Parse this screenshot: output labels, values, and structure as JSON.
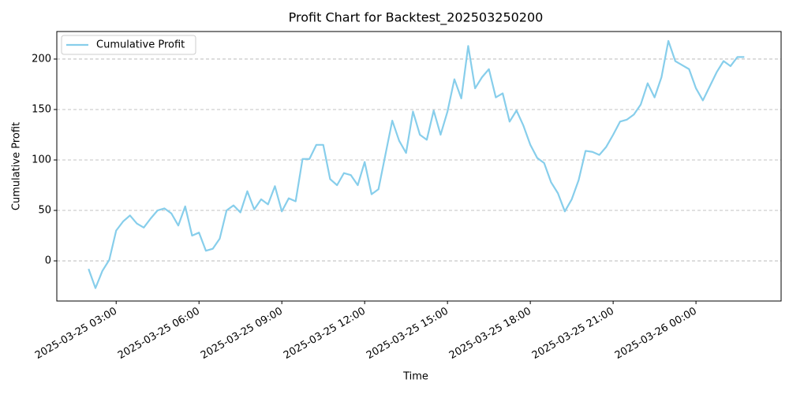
{
  "chart_data": {
    "type": "line",
    "title": "Profit Chart for Backtest_202503250200",
    "x_label": "Time",
    "y_label": "Cumulative Profit",
    "x": [
      "2025-03-25 02:00",
      "2025-03-25 02:15",
      "2025-03-25 02:30",
      "2025-03-25 02:45",
      "2025-03-25 03:00",
      "2025-03-25 03:15",
      "2025-03-25 03:30",
      "2025-03-25 03:45",
      "2025-03-25 04:00",
      "2025-03-25 04:15",
      "2025-03-25 04:30",
      "2025-03-25 04:45",
      "2025-03-25 05:00",
      "2025-03-25 05:15",
      "2025-03-25 05:30",
      "2025-03-25 05:45",
      "2025-03-25 06:00",
      "2025-03-25 06:15",
      "2025-03-25 06:30",
      "2025-03-25 06:45",
      "2025-03-25 07:00",
      "2025-03-25 07:15",
      "2025-03-25 07:30",
      "2025-03-25 07:45",
      "2025-03-25 08:00",
      "2025-03-25 08:15",
      "2025-03-25 08:30",
      "2025-03-25 08:45",
      "2025-03-25 09:00",
      "2025-03-25 09:15",
      "2025-03-25 09:30",
      "2025-03-25 09:45",
      "2025-03-25 10:00",
      "2025-03-25 10:15",
      "2025-03-25 10:30",
      "2025-03-25 10:45",
      "2025-03-25 11:00",
      "2025-03-25 11:15",
      "2025-03-25 11:30",
      "2025-03-25 11:45",
      "2025-03-25 12:00",
      "2025-03-25 12:15",
      "2025-03-25 12:30",
      "2025-03-25 12:45",
      "2025-03-25 13:00",
      "2025-03-25 13:15",
      "2025-03-25 13:30",
      "2025-03-25 13:45",
      "2025-03-25 14:00",
      "2025-03-25 14:15",
      "2025-03-25 14:30",
      "2025-03-25 14:45",
      "2025-03-25 15:00",
      "2025-03-25 15:15",
      "2025-03-25 15:30",
      "2025-03-25 15:45",
      "2025-03-25 16:00",
      "2025-03-25 16:15",
      "2025-03-25 16:30",
      "2025-03-25 16:45",
      "2025-03-25 17:00",
      "2025-03-25 17:15",
      "2025-03-25 17:30",
      "2025-03-25 17:45",
      "2025-03-25 18:00",
      "2025-03-25 18:15",
      "2025-03-25 18:30",
      "2025-03-25 18:45",
      "2025-03-25 19:00",
      "2025-03-25 19:15",
      "2025-03-25 19:30",
      "2025-03-25 19:45",
      "2025-03-25 20:00",
      "2025-03-25 20:15",
      "2025-03-25 20:30",
      "2025-03-25 20:45",
      "2025-03-25 21:00",
      "2025-03-25 21:15",
      "2025-03-25 21:30",
      "2025-03-25 21:45",
      "2025-03-25 22:00",
      "2025-03-25 22:15",
      "2025-03-25 22:30",
      "2025-03-25 22:45",
      "2025-03-25 23:00",
      "2025-03-25 23:15",
      "2025-03-25 23:30",
      "2025-03-25 23:45",
      "2025-03-26 00:00",
      "2025-03-26 00:15",
      "2025-03-26 00:30",
      "2025-03-26 00:45",
      "2025-03-26 01:00",
      "2025-03-26 01:15",
      "2025-03-26 01:30",
      "2025-03-26 01:45"
    ],
    "series": [
      {
        "name": "Cumulative Profit",
        "color": "#87ceeb",
        "values": [
          -8,
          -27,
          -10,
          1,
          30,
          39,
          45,
          37,
          33,
          42,
          50,
          52,
          47,
          35,
          54,
          25,
          28,
          10,
          12,
          22,
          50,
          55,
          48,
          69,
          51,
          61,
          56,
          74,
          49,
          62,
          59,
          101,
          101,
          115,
          115,
          81,
          75,
          87,
          85,
          75,
          98,
          66,
          71,
          105,
          139,
          119,
          107,
          148,
          125,
          120,
          149,
          125,
          148,
          180,
          161,
          213,
          171,
          182,
          190,
          162,
          166,
          138,
          149,
          134,
          115,
          102,
          97,
          78,
          67,
          49,
          61,
          80,
          109,
          108,
          105,
          113,
          125,
          138,
          140,
          145,
          155,
          176,
          162,
          182,
          218,
          198,
          194,
          190,
          171,
          159,
          173,
          187,
          198,
          193,
          202,
          202
        ]
      }
    ],
    "xlim": [
      "2025-03-25 00:51",
      "2025-03-26 03:05"
    ],
    "xticks": [
      "2025-03-25 03:00",
      "2025-03-25 06:00",
      "2025-03-25 09:00",
      "2025-03-25 12:00",
      "2025-03-25 15:00",
      "2025-03-25 18:00",
      "2025-03-25 21:00",
      "2025-03-26 00:00"
    ],
    "ylim": [
      -39.8,
      227.3
    ],
    "yticks": [
      0,
      50,
      100,
      150,
      200
    ],
    "grid": true,
    "legend": "upper left"
  }
}
